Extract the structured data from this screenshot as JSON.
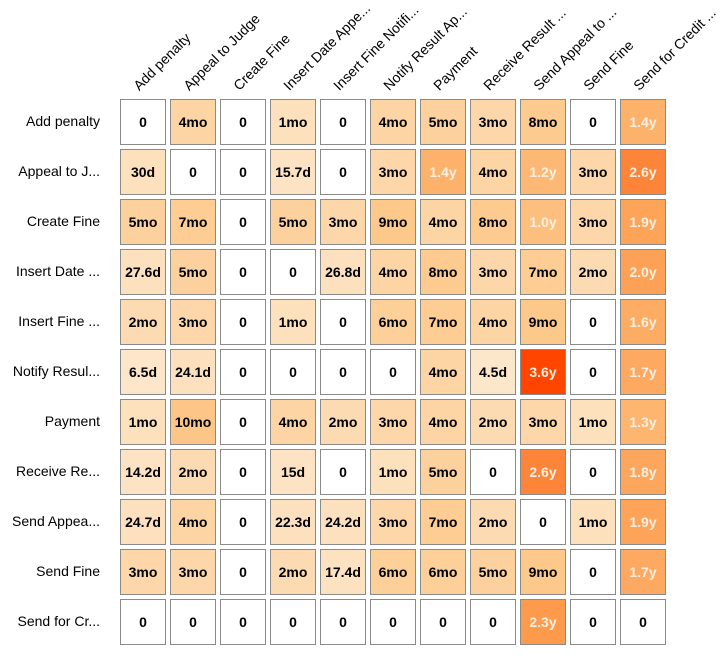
{
  "chart_data": {
    "type": "heatmap",
    "columns": [
      "Add penalty",
      "Appeal to Judge",
      "Create Fine",
      "Insert Date Appe...",
      "Insert Fine Notifi...",
      "Notify Result Ap...",
      "Payment",
      "Receive Result ...",
      "Send Appeal to ...",
      "Send Fine",
      "Send for Credit ..."
    ],
    "rows": [
      "Add penalty",
      "Appeal to J...",
      "Create Fine",
      "Insert Date ...",
      "Insert Fine ...",
      "Notify Resul...",
      "Payment",
      "Receive Re...",
      "Send Appea...",
      "Send Fine",
      "Send for Cr..."
    ],
    "cells": [
      [
        "0",
        "4mo",
        "0",
        "1mo",
        "0",
        "4mo",
        "5mo",
        "3mo",
        "8mo",
        "0",
        "1.4y"
      ],
      [
        "30d",
        "0",
        "0",
        "15.7d",
        "0",
        "3mo",
        "1.4y",
        "4mo",
        "1.2y",
        "3mo",
        "2.6y"
      ],
      [
        "5mo",
        "7mo",
        "0",
        "5mo",
        "3mo",
        "9mo",
        "4mo",
        "8mo",
        "1.0y",
        "3mo",
        "1.9y"
      ],
      [
        "27.6d",
        "5mo",
        "0",
        "0",
        "26.8d",
        "4mo",
        "8mo",
        "3mo",
        "7mo",
        "2mo",
        "2.0y"
      ],
      [
        "2mo",
        "3mo",
        "0",
        "1mo",
        "0",
        "6mo",
        "7mo",
        "4mo",
        "9mo",
        "0",
        "1.6y"
      ],
      [
        "6.5d",
        "24.1d",
        "0",
        "0",
        "0",
        "0",
        "4mo",
        "4.5d",
        "3.6y",
        "0",
        "1.7y"
      ],
      [
        "1mo",
        "10mo",
        "0",
        "4mo",
        "2mo",
        "3mo",
        "4mo",
        "2mo",
        "3mo",
        "1mo",
        "1.3y"
      ],
      [
        "14.2d",
        "2mo",
        "0",
        "15d",
        "0",
        "1mo",
        "5mo",
        "0",
        "2.6y",
        "0",
        "1.8y"
      ],
      [
        "24.7d",
        "4mo",
        "0",
        "22.3d",
        "24.2d",
        "3mo",
        "7mo",
        "2mo",
        "0",
        "1mo",
        "1.9y"
      ],
      [
        "3mo",
        "3mo",
        "0",
        "2mo",
        "17.4d",
        "6mo",
        "6mo",
        "5mo",
        "9mo",
        "0",
        "1.7y"
      ],
      [
        "0",
        "0",
        "0",
        "0",
        "0",
        "0",
        "0",
        "0",
        "2.3y",
        "0",
        "0"
      ]
    ],
    "color_scale": {
      "zero": "#ffffff",
      "low": "#fdebd4",
      "mid": "#fdc98c",
      "high": "#fd9a4c",
      "max": "#ff4500"
    },
    "light_text_color": "#fdf0e0",
    "dark_text_color": "#000000"
  }
}
